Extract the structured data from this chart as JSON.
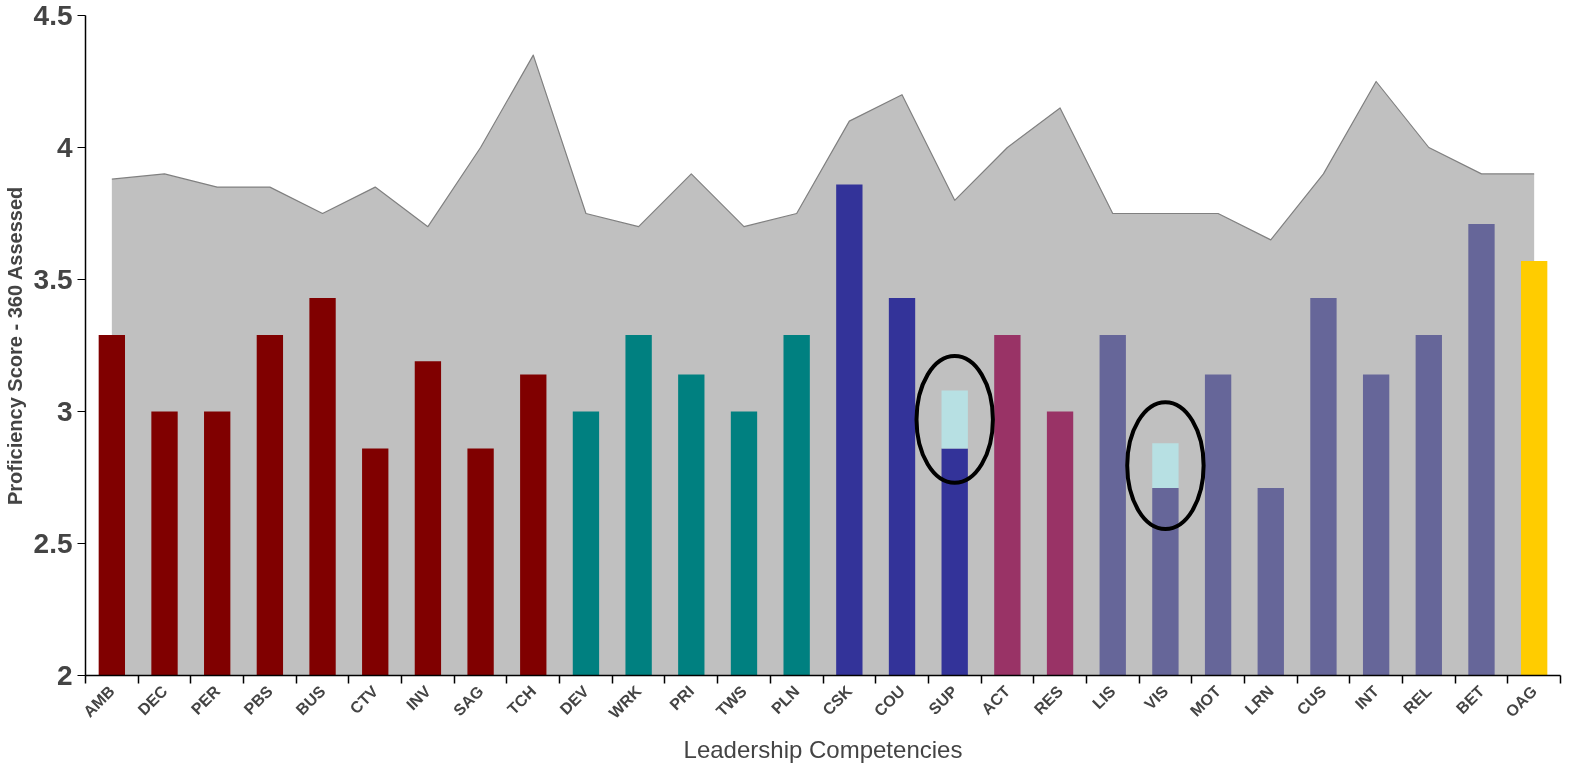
{
  "chart_data": {
    "type": "bar",
    "xlabel": "Leadership Competencies",
    "ylabel": "Proficiency Score - 360 Assessed",
    "categories": [
      "AMB",
      "DEC",
      "PER",
      "PBS",
      "BUS",
      "CTV",
      "INV",
      "SAG",
      "TCH",
      "DEV",
      "WRK",
      "PRI",
      "TWS",
      "PLN",
      "CSK",
      "COU",
      "SUP",
      "ACT",
      "RES",
      "LIS",
      "VIS",
      "MOT",
      "LRN",
      "CUS",
      "INT",
      "REL",
      "BET",
      "OAG"
    ],
    "series": [
      {
        "type": "area",
        "color": "#c0c0c0",
        "values": [
          3.88,
          3.9,
          3.85,
          3.85,
          3.75,
          3.85,
          3.7,
          4.0,
          4.35,
          3.75,
          3.7,
          3.9,
          3.7,
          3.75,
          4.1,
          4.2,
          3.8,
          4.0,
          4.15,
          3.75,
          3.75,
          3.75,
          3.65,
          3.9,
          4.25,
          4.0,
          3.9,
          3.9
        ]
      },
      {
        "colors": [
          "#800000",
          "#800000",
          "#800000",
          "#800000",
          "#800000",
          "#800000",
          "#800000",
          "#800000",
          "#800000",
          "#008080",
          "#008080",
          "#008080",
          "#008080",
          "#008080",
          "#333399",
          "#333399",
          "#333399",
          "#993366",
          "#993366",
          "#666699",
          "#666699",
          "#666699",
          "#666699",
          "#666699",
          "#666699",
          "#666699",
          "#666699",
          "#ffcc00"
        ],
        "values": [
          3.29,
          3.0,
          3.0,
          3.29,
          3.43,
          2.86,
          3.19,
          2.86,
          3.14,
          3.0,
          3.29,
          3.14,
          3.0,
          3.29,
          3.86,
          3.43,
          2.86,
          3.29,
          3.0,
          3.29,
          2.71,
          3.14,
          2.71,
          3.43,
          3.14,
          3.29,
          3.71,
          3.57
        ]
      },
      {
        "color": "#b7e0e3",
        "base": [
          null,
          null,
          null,
          null,
          null,
          null,
          null,
          null,
          null,
          null,
          null,
          null,
          null,
          null,
          null,
          null,
          2.86,
          null,
          null,
          null,
          2.71,
          null,
          null,
          null,
          null,
          null,
          null,
          null
        ],
        "values": [
          null,
          null,
          null,
          null,
          null,
          null,
          null,
          null,
          null,
          null,
          null,
          null,
          null,
          null,
          null,
          null,
          0.22,
          null,
          null,
          null,
          0.17,
          null,
          null,
          null,
          null,
          null,
          null,
          null
        ]
      }
    ],
    "ylim": [
      2,
      4.5
    ],
    "yticks": [
      2,
      2.5,
      3,
      3.5,
      4,
      4.5
    ]
  }
}
